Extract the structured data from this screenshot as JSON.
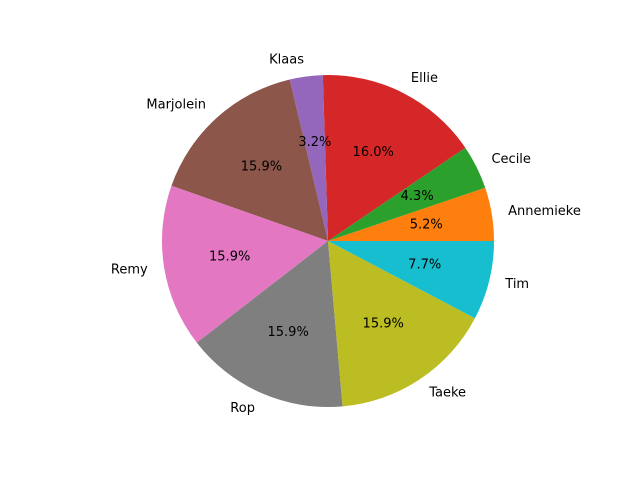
{
  "chart_data": {
    "type": "pie",
    "start_angle_deg": 0,
    "direction": "counterclockwise",
    "slices": [
      {
        "label": "Annemieke",
        "value": 5.2,
        "pct_label": "5.2%",
        "color": "#ff7f0e"
      },
      {
        "label": "Cecile",
        "value": 4.3,
        "pct_label": "4.3%",
        "color": "#2ca02c"
      },
      {
        "label": "Ellie",
        "value": 16.0,
        "pct_label": "16.0%",
        "color": "#d62728"
      },
      {
        "label": "Klaas",
        "value": 3.2,
        "pct_label": "3.2%",
        "color": "#9467bd"
      },
      {
        "label": "Marjolein",
        "value": 15.9,
        "pct_label": "15.9%",
        "color": "#8c564b"
      },
      {
        "label": "Remy",
        "value": 15.9,
        "pct_label": "15.9%",
        "color": "#e377c2"
      },
      {
        "label": "Rop",
        "value": 15.9,
        "pct_label": "15.9%",
        "color": "#7f7f7f"
      },
      {
        "label": "Taeke",
        "value": 15.9,
        "pct_label": "15.9%",
        "color": "#bcbd22"
      },
      {
        "label": "Tim",
        "value": 7.7,
        "pct_label": "7.7%",
        "color": "#17becf"
      }
    ]
  }
}
